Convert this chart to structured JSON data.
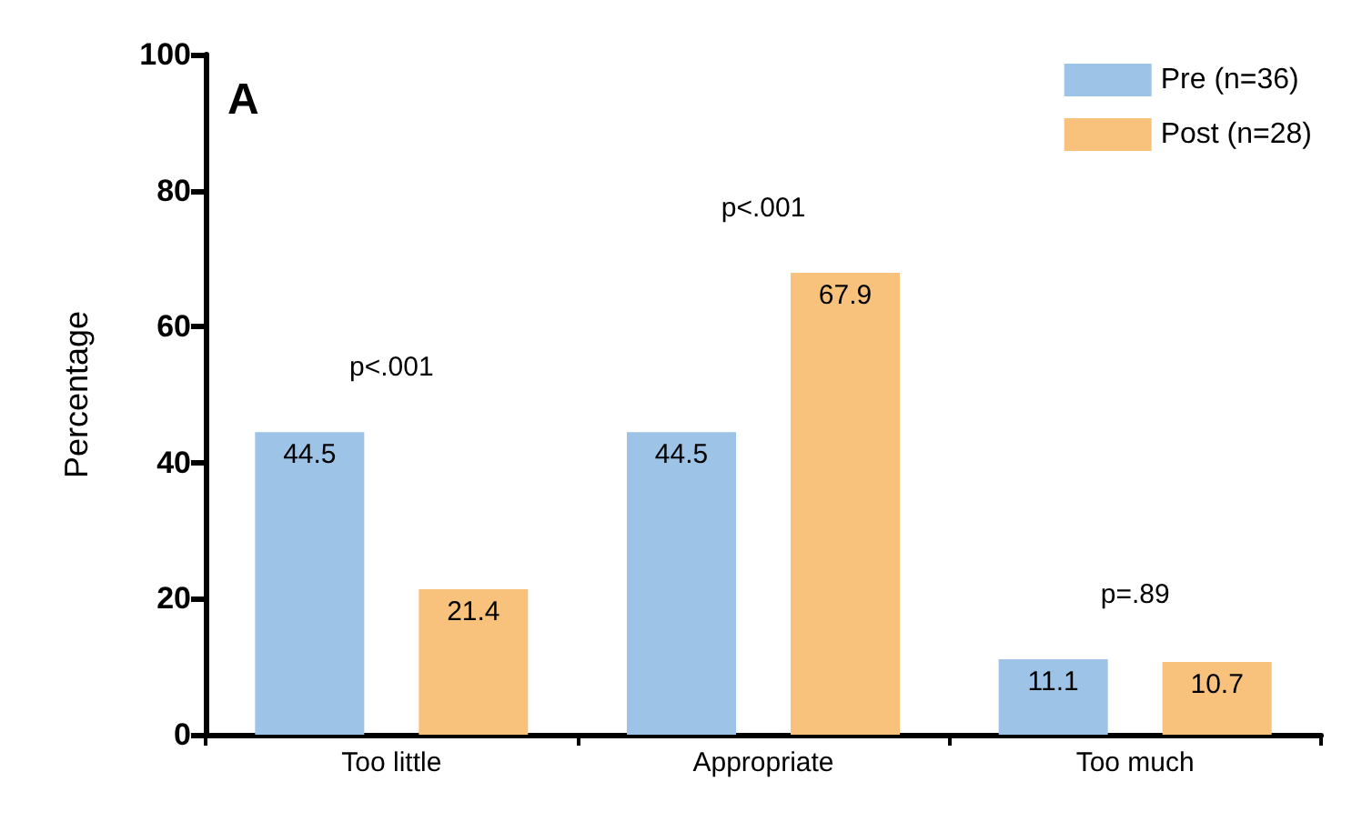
{
  "chart_data": {
    "type": "bar",
    "title": "A",
    "ylabel": "Percentage",
    "categories": [
      "Too little",
      "Appropriate",
      "Too much"
    ],
    "series": [
      {
        "name": "Pre (n=36)",
        "color": "#9dc3e6",
        "values": [
          44.5,
          44.5,
          11.1
        ]
      },
      {
        "name": "Post (n=28)",
        "color": "#f8c27d",
        "values": [
          21.4,
          67.9,
          10.7
        ]
      }
    ],
    "ylim": [
      0,
      100
    ],
    "yticks": [
      0,
      20,
      40,
      60,
      80,
      100
    ],
    "grid": false,
    "legend": "top right",
    "data_labels": true,
    "annotations": [
      "p<.001",
      "p<.001",
      "p=.89"
    ]
  }
}
